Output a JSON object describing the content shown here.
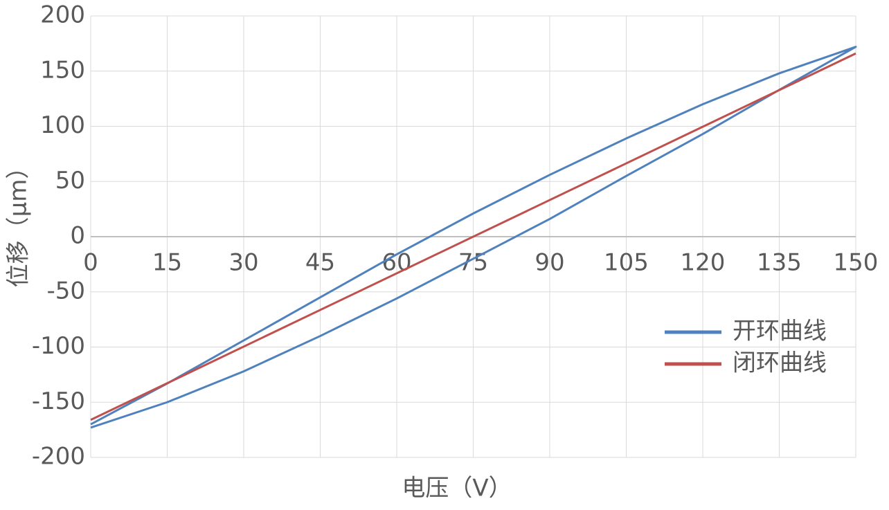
{
  "chart_data": {
    "type": "line",
    "x_label": "电压（V）",
    "y_label": "位移（μm）",
    "xlim": [
      0,
      150
    ],
    "xticks": [
      0,
      15,
      30,
      45,
      60,
      75,
      90,
      105,
      120,
      135,
      150
    ],
    "ylim": [
      -200,
      200
    ],
    "yticks": [
      -200,
      -150,
      -100,
      -50,
      0,
      50,
      100,
      150,
      200
    ],
    "grid": true,
    "legend": "right",
    "series": [
      {
        "name": "开环曲线",
        "color": "#4f81bd",
        "x": [
          0,
          15,
          30,
          45,
          60,
          75,
          90,
          105,
          120,
          135,
          150,
          135,
          120,
          105,
          90,
          75,
          60,
          45,
          30,
          15,
          0
        ],
        "values": [
          -173,
          -150,
          -122,
          -90,
          -56,
          -20,
          16,
          55,
          93,
          133,
          172,
          148,
          120,
          89,
          56,
          21,
          -16,
          -55,
          -94,
          -133,
          -170
        ]
      },
      {
        "name": "闭环曲线",
        "color": "#c0504d",
        "x": [
          0,
          150
        ],
        "values": [
          -166,
          166
        ]
      }
    ]
  }
}
